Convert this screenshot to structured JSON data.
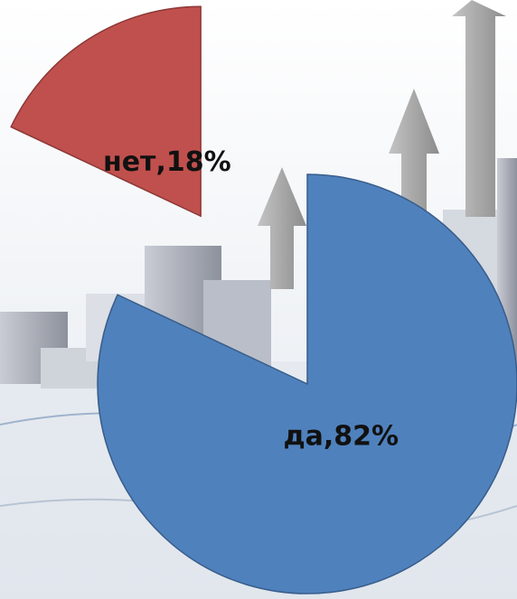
{
  "chart_data": {
    "type": "pie",
    "values": [
      82,
      18
    ],
    "value_labels": [
      "да,82%",
      "нет,18%"
    ],
    "colors": [
      "#4f81bd",
      "#c0504d"
    ]
  }
}
